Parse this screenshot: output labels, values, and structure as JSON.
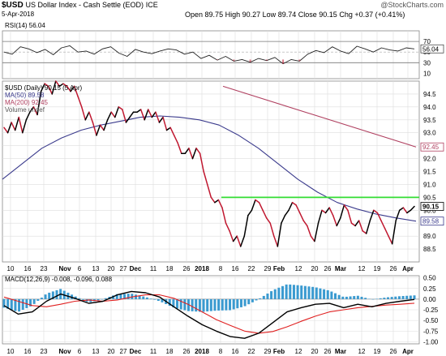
{
  "header": {
    "symbol": "$USD",
    "name": "US Dollar Index - Cash Settle (EOD)",
    "exchange": "ICE",
    "date": "5-Apr-2018",
    "watermark": "@StockCharts.com",
    "quote": {
      "open_label": "Open",
      "open": "89.75",
      "high_label": "High",
      "high": "90.27",
      "low_label": "Low",
      "low": "89.74",
      "close_label": "Close",
      "close": "90.15",
      "chg_label": "Chg",
      "chg": "+0.37 (+0.41%)"
    }
  },
  "rsi_panel": {
    "legend": "RSI(14) 56.04",
    "value_tag": "56.04",
    "ticks": [
      "70",
      "50",
      "30",
      "10"
    ]
  },
  "price_panel": {
    "legend": [
      {
        "text": "$USD (Daily) 90.15 (5 Apr)",
        "color": "#000000"
      },
      {
        "text": "MA(50) 89.58",
        "color": "#3a3a8c"
      },
      {
        "text": "MA(200) 92.45",
        "color": "#b04060"
      },
      {
        "text": "Volume undef",
        "color": "#555555"
      }
    ],
    "ticks": [
      "94.5",
      "94.0",
      "93.5",
      "93.0",
      "92.5",
      "92.0",
      "91.5",
      "91.0",
      "90.5",
      "90.0",
      "89.5",
      "89.0",
      "88.5"
    ],
    "tags": [
      {
        "text": "92.45",
        "color": "#b04060"
      },
      {
        "text": "90.15",
        "color": "#000000"
      },
      {
        "text": "89.58",
        "color": "#3a3a8c"
      }
    ]
  },
  "macd_panel": {
    "legend": "MACD(12,26,9) -0.008, -0.096, 0.088",
    "ticks": [
      "0.50",
      "0.25",
      "0.00",
      "-0.25",
      "-0.50",
      "-0.75",
      "-1.00"
    ]
  },
  "x_labels": [
    "10",
    "16",
    "23",
    "Nov",
    "6",
    "13",
    "20",
    "27",
    "Dec",
    "11",
    "18",
    "26",
    "2018",
    "8",
    "16",
    "22",
    "29",
    "Feb",
    "12",
    "20",
    "26",
    "Mar",
    "12",
    "19",
    "26",
    "Apr"
  ],
  "colors": {
    "price": "#000000",
    "down": "#c01830",
    "ma50": "#3a3a8c",
    "ma200": "#b04060",
    "signal": "#e02020",
    "hist": "#3a9ad0",
    "resistance": "#33dd33",
    "grid": "#dddddd"
  },
  "chart_data": {
    "type": "line",
    "period": "2017-10-09 to 2018-04-05",
    "price": {
      "name": "$USD (Daily)",
      "values": [
        93.2,
        93.0,
        93.4,
        93.1,
        93.6,
        93.0,
        93.5,
        93.8,
        94.0,
        93.7,
        94.6,
        94.9,
        94.8,
        94.5,
        95.0,
        94.8,
        94.9,
        94.8,
        94.6,
        94.8,
        94.4,
        94.0,
        93.5,
        93.8,
        93.4,
        92.9,
        93.3,
        93.1,
        93.5,
        93.8,
        93.6,
        94.0,
        93.9,
        93.4,
        93.6,
        93.8,
        93.8,
        93.9,
        93.5,
        93.9,
        93.6,
        93.8,
        93.4,
        93.6,
        93.1,
        93.2,
        92.9,
        92.6,
        92.2,
        92.2,
        92.4,
        92.0,
        92.4,
        92.2,
        91.5,
        91.0,
        90.5,
        90.3,
        90.4,
        90.1,
        89.5,
        89.2,
        88.8,
        89.0,
        88.6,
        89.0,
        89.8,
        90.0,
        90.4,
        90.3,
        90.0,
        89.7,
        89.5,
        89.0,
        88.6,
        89.5,
        89.8,
        90.0,
        90.3,
        90.2,
        89.9,
        89.6,
        89.4,
        89.0,
        88.8,
        89.5,
        90.0,
        89.9,
        90.1,
        89.8,
        89.4,
        89.7,
        90.2,
        90.0,
        89.5,
        89.4,
        89.6,
        89.2,
        89.1,
        89.6,
        90.0,
        89.9,
        89.6,
        89.3,
        89.0,
        88.7,
        89.6,
        90.0,
        90.1,
        89.9,
        90.0,
        90.15
      ]
    },
    "ma50": {
      "name": "MA(50)",
      "values": [
        91.2,
        91.8,
        92.4,
        92.8,
        93.1,
        93.3,
        93.45,
        93.6,
        93.65,
        93.6,
        93.5,
        93.3,
        92.9,
        92.4,
        91.8,
        91.2,
        90.7,
        90.3,
        90.05,
        89.85,
        89.7,
        89.58
      ]
    },
    "ma200": {
      "name": "MA(200)",
      "start": 94.8,
      "end": 92.45
    },
    "resistance": 90.5,
    "rsi": {
      "name": "RSI(14)",
      "last": 56.04,
      "values": [
        50,
        46,
        60,
        56,
        49,
        55,
        45,
        58,
        62,
        50,
        52,
        46,
        56,
        60,
        48,
        42,
        55,
        50,
        47,
        52,
        56,
        54,
        46,
        50,
        38,
        44,
        35,
        42,
        33,
        36,
        31,
        38,
        34,
        40,
        28,
        36,
        33,
        46,
        53,
        49,
        60,
        52,
        47,
        61,
        56,
        50,
        58,
        54,
        52,
        58,
        56.04
      ]
    },
    "macd": {
      "name": "MACD(12,26,9)",
      "macd": -0.008,
      "signal": -0.096,
      "histogram": 0.088,
      "macd_values": [
        -0.15,
        -0.35,
        -0.3,
        -0.05,
        0.12,
        0.02,
        -0.1,
        -0.05,
        0.1,
        0.18,
        0.15,
        0.05,
        -0.18,
        -0.4,
        -0.6,
        -0.75,
        -0.88,
        -0.92,
        -0.8,
        -0.55,
        -0.3,
        -0.2,
        -0.12,
        -0.1,
        -0.2,
        -0.12,
        -0.18,
        -0.1,
        -0.05,
        -0.008
      ],
      "signal_values": [
        0.05,
        -0.05,
        -0.15,
        -0.18,
        -0.12,
        -0.05,
        -0.02,
        -0.05,
        -0.02,
        0.05,
        0.1,
        0.1,
        0.02,
        -0.12,
        -0.3,
        -0.48,
        -0.62,
        -0.75,
        -0.8,
        -0.76,
        -0.65,
        -0.52,
        -0.4,
        -0.3,
        -0.25,
        -0.2,
        -0.17,
        -0.14,
        -0.12,
        -0.096
      ]
    }
  }
}
